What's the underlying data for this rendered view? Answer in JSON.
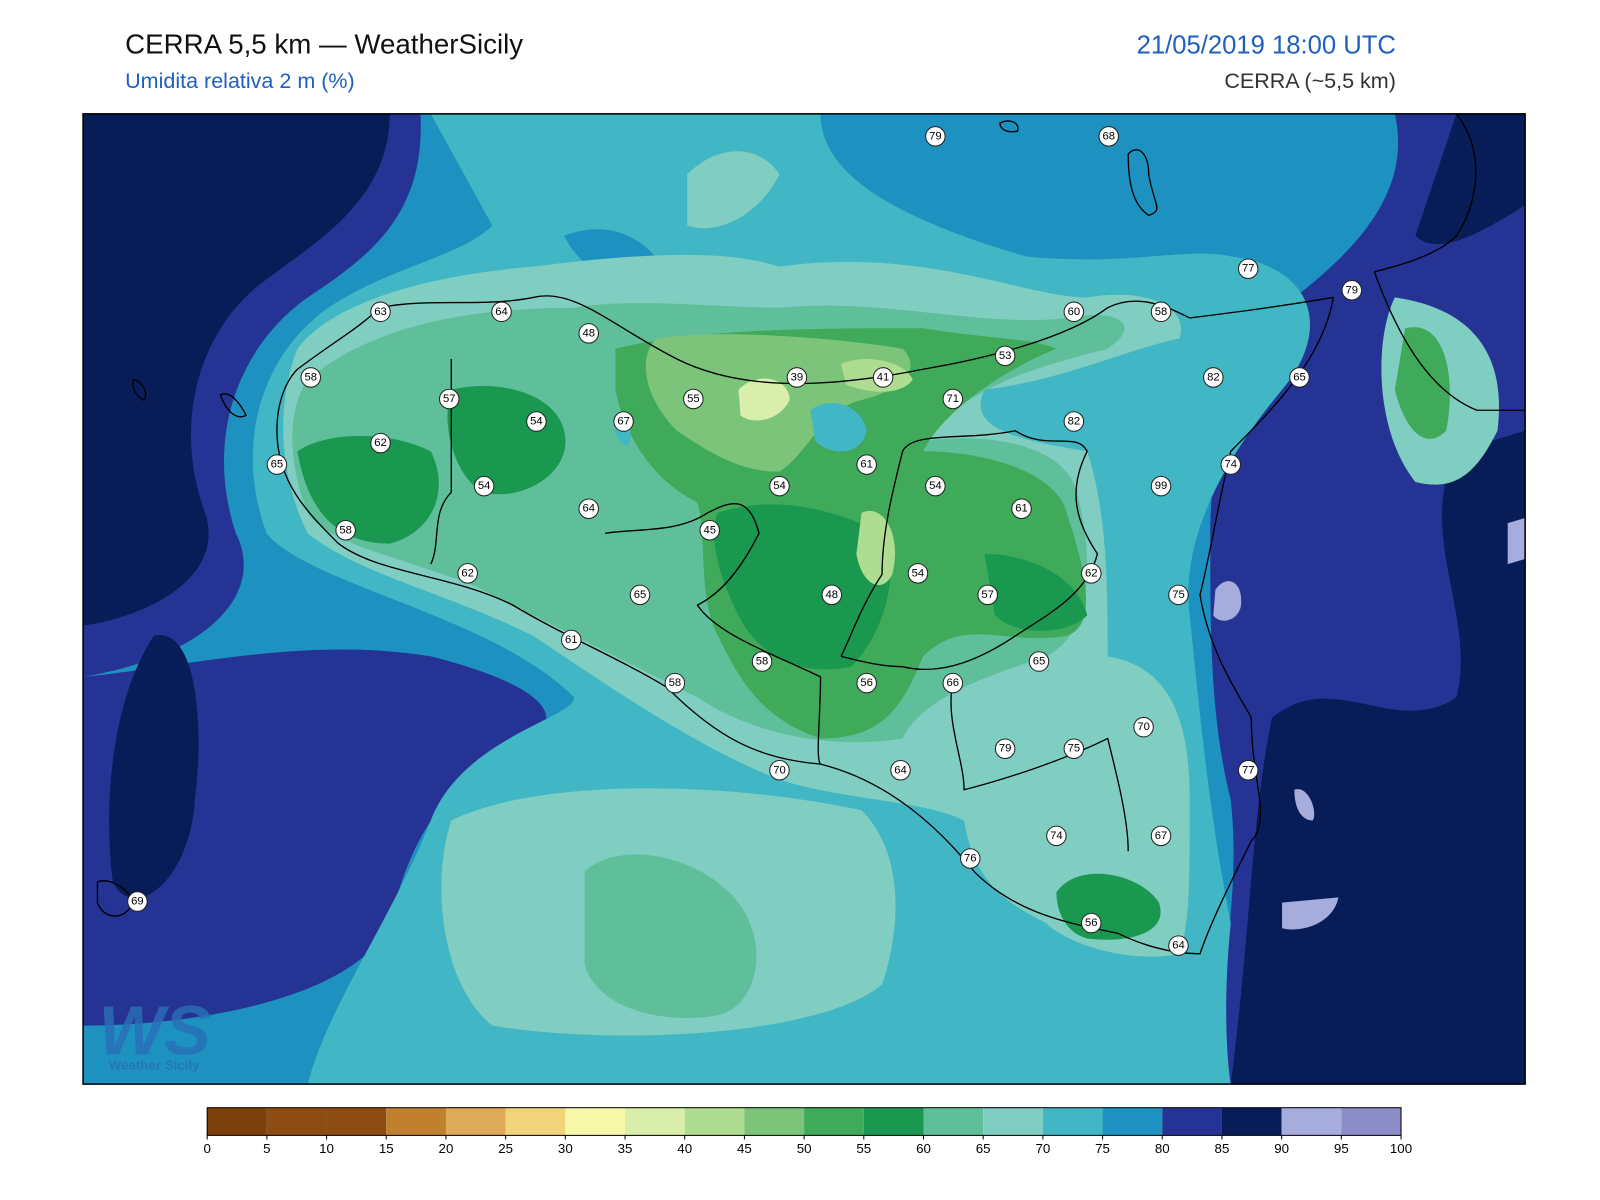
{
  "header": {
    "title": "CERRA 5,5 km — WeatherSicily",
    "subtitle": "Umidita relativa 2 m (%)",
    "datetime": "21/05/2019 18:00 UTC",
    "model": "CERRA (~5,5 km)"
  },
  "logo": {
    "mark": "WS",
    "text": "Weather Sicily"
  },
  "station_values": [
    79,
    68,
    77,
    79,
    63,
    64,
    60,
    58,
    48,
    53,
    58,
    39,
    41,
    82,
    65,
    57,
    55,
    71,
    54,
    67,
    82,
    62,
    61,
    74,
    65,
    54,
    54,
    54,
    99,
    64,
    61,
    58,
    45,
    62,
    54,
    62,
    65,
    48,
    57,
    75,
    61,
    58,
    65,
    58,
    56,
    66,
    70,
    79,
    75,
    70,
    64,
    77,
    74,
    67,
    76,
    69,
    56,
    64
  ],
  "colorbar": {
    "ticks": [
      0,
      5,
      10,
      15,
      20,
      25,
      30,
      35,
      40,
      45,
      50,
      55,
      60,
      65,
      70,
      75,
      80,
      85,
      90,
      95,
      100
    ],
    "colors": [
      "#7b400c",
      "#8c4c12",
      "#8c4c12",
      "#c0802e",
      "#dcaa58",
      "#f0d47c",
      "#f7f7a8",
      "#d8eeaa",
      "#aedc90",
      "#7cc47a",
      "#3eaa5a",
      "#1a9850",
      "#5fbf9a",
      "#80cdc1",
      "#41b6c4",
      "#1d91c0",
      "#253494",
      "#081d58",
      "#a6acdb",
      "#8c8cc8"
    ]
  }
}
